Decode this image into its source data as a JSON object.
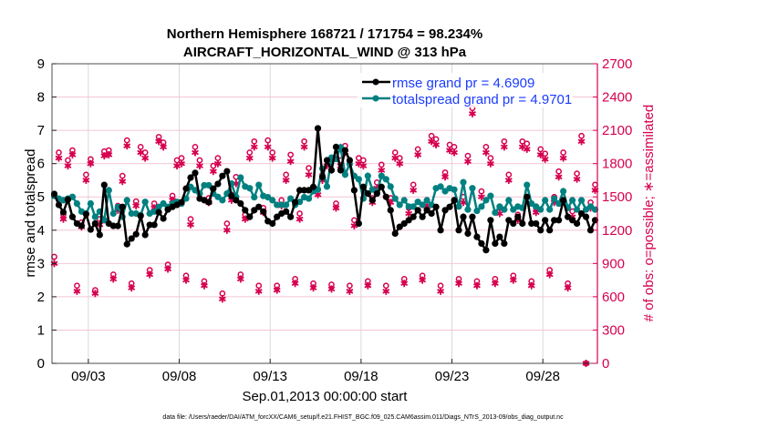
{
  "chart_data": {
    "type": "line",
    "title": [
      "Northern Hemisphere 168721 / 171754 = 98.234%",
      "AIRCRAFT_HORIZONTAL_WIND @ 313 hPa"
    ],
    "xlabel": "Sep.01,2013 00:00:00 start",
    "ylabel": "rmse and totalspread",
    "y2label": "# of obs: o=possible; ∗=assimilated",
    "footnote": "data file: /Users/raeder/DAI/ATM_forcXX/CAM6_setup/f.e21.FHIST_BGC.f09_025.CAM6assim.011/Diags_NTrS_2013-09/obs_diag_output.nc",
    "xlim": [
      "09/01",
      "10/01"
    ],
    "xticks": [
      "09/03",
      "09/08",
      "09/13",
      "09/18",
      "09/23",
      "09/28"
    ],
    "ylim": [
      0,
      9
    ],
    "yticks": [
      "0",
      "1",
      "2",
      "3",
      "4",
      "5",
      "6",
      "7",
      "8",
      "9"
    ],
    "y2lim": [
      0,
      2700
    ],
    "y2ticks": [
      "0",
      "300",
      "600",
      "900",
      "1200",
      "1500",
      "1800",
      "2100",
      "2400",
      "2700"
    ],
    "grid": true,
    "legend_placement": "top-right",
    "colors": {
      "rmse": "#000000",
      "totalspread": "#008080",
      "obs": "#d6004f",
      "legend_text": "#1a3cff",
      "grid_h": "#f4c6d6",
      "grid_v": "#d9d9d9"
    },
    "series": [
      {
        "name": "rmse grand pr = 4.6909",
        "axis": "left",
        "values": [
          5.09,
          4.76,
          4.54,
          4.92,
          4.4,
          4.2,
          4.13,
          4.48,
          4.02,
          4.2,
          3.86,
          5.36,
          4.2,
          4.13,
          4.13,
          4.7,
          3.58,
          3.75,
          3.88,
          4.43,
          3.86,
          4.16,
          4.16,
          4.54,
          4.35,
          4.62,
          4.7,
          4.76,
          4.84,
          5.25,
          5.58,
          5.72,
          4.95,
          4.9,
          4.84,
          5.25,
          5.39,
          5.63,
          5.77,
          5.03,
          4.9,
          4.8,
          4.6,
          4.4,
          4.6,
          4.7,
          4.56,
          4.27,
          4.2,
          4.4,
          4.5,
          4.56,
          4.4,
          4.84,
          5.2,
          5.2,
          5.2,
          5.3,
          7.06,
          5.6,
          6.1,
          5.8,
          6.5,
          5.8,
          6.4,
          6.1,
          5.2,
          4.2,
          5.3,
          5.1,
          4.9,
          5.1,
          5.3,
          5.0,
          4.6,
          3.9,
          4.1,
          4.2,
          4.3,
          4.4,
          4.6,
          4.4,
          4.6,
          4.5,
          4.7,
          4.0,
          4.6,
          4.7,
          4.9,
          4.0,
          4.4,
          3.9,
          4.4,
          3.8,
          3.6,
          3.4,
          4.3,
          3.6,
          3.8,
          3.6,
          4.3,
          4.2,
          4.4,
          4.2,
          5.0,
          4.2,
          4.2,
          4.0,
          4.3,
          4.0,
          4.3,
          4.3,
          4.9,
          4.4,
          4.3,
          4.2,
          4.5,
          4.4,
          4.0,
          4.3
        ]
      },
      {
        "name": "totalspread grand pr = 4.9701",
        "axis": "left",
        "values": [
          5.03,
          4.95,
          4.9,
          4.95,
          5.0,
          4.8,
          4.56,
          4.5,
          4.8,
          4.4,
          4.56,
          4.3,
          5.2,
          4.5,
          4.7,
          4.4,
          4.9,
          4.5,
          4.5,
          4.45,
          4.85,
          4.5,
          4.56,
          4.7,
          4.8,
          4.7,
          4.8,
          4.85,
          4.8,
          4.95,
          5.3,
          5.2,
          5.1,
          5.35,
          5.35,
          5.1,
          5.0,
          4.9,
          5.1,
          5.4,
          5.0,
          5.58,
          5.31,
          5.26,
          4.99,
          5.36,
          5.03,
          4.99,
          4.9,
          4.76,
          4.76,
          4.76,
          4.95,
          4.76,
          4.85,
          4.99,
          4.95,
          5.17,
          5.22,
          5.85,
          5.31,
          6.18,
          6.14,
          6.49,
          5.67,
          5.99,
          5.63,
          5.53,
          4.95,
          5.63,
          5.22,
          5.13,
          5.63,
          5.53,
          5.31,
          4.95,
          4.76,
          4.9,
          4.71,
          4.71,
          4.85,
          4.76,
          4.9,
          4.76,
          5.26,
          5.31,
          5.17,
          5.26,
          5.22,
          4.71,
          5.44,
          4.62,
          5.26,
          4.58,
          4.71,
          4.9,
          5.03,
          4.53,
          4.71,
          4.62,
          4.9,
          4.62,
          4.71,
          4.67,
          5.36,
          4.8,
          4.71,
          4.62,
          4.9,
          4.62,
          4.95,
          4.8,
          5.17,
          4.67,
          4.9,
          4.62,
          4.9,
          4.62,
          4.71,
          4.62
        ]
      },
      {
        "name": "possible",
        "axis": "right",
        "marker": "o",
        "values": [
          960,
          1900,
          1340,
          1830,
          1920,
          700,
          1270,
          1700,
          1840,
          660,
          1300,
          1910,
          1920,
          800,
          1420,
          1690,
          2010,
          720,
          1460,
          1950,
          1900,
          840,
          1440,
          2040,
          1990,
          890,
          1510,
          1830,
          1850,
          790,
          1300,
          1950,
          1830,
          740,
          1490,
          1780,
          1850,
          630,
          1260,
          1520,
          1680,
          800,
          1340,
          1900,
          2000,
          700,
          1400,
          2010,
          1900,
          700,
          1470,
          1700,
          1880,
          760,
          1350,
          2000,
          1760,
          720,
          1570,
          1700,
          1830,
          710,
          1440,
          1830,
          1960,
          700,
          1290,
          1850,
          1830,
          740,
          1490,
          1630,
          1790,
          700,
          1490,
          1900,
          1850,
          760,
          1400,
          1610,
          1930,
          790,
          1450,
          2050,
          2020,
          700,
          1720,
          1970,
          1950,
          760,
          1500,
          1870,
          2300,
          740,
          1550,
          1950,
          1850,
          760,
          1400,
          2000,
          1700,
          790,
          1340,
          2000,
          1980,
          740,
          1400,
          1930,
          1890,
          840,
          1500,
          1730,
          1900,
          720,
          1370,
          1710,
          2050,
          0,
          1450,
          1610
        ]
      },
      {
        "name": "assimilated",
        "axis": "right",
        "marker": "*",
        "values": [
          900,
          1850,
          1300,
          1780,
          1880,
          650,
          1230,
          1650,
          1800,
          630,
          1250,
          1870,
          1880,
          760,
          1380,
          1640,
          1960,
          680,
          1420,
          1900,
          1850,
          800,
          1400,
          2000,
          1950,
          850,
          1470,
          1780,
          1800,
          750,
          1250,
          1900,
          1780,
          700,
          1450,
          1730,
          1800,
          580,
          1200,
          1470,
          1620,
          760,
          1300,
          1850,
          1950,
          650,
          1360,
          1950,
          1850,
          660,
          1420,
          1650,
          1820,
          720,
          1300,
          1950,
          1700,
          680,
          1520,
          1650,
          1780,
          670,
          1400,
          1780,
          1900,
          650,
          1240,
          1800,
          1780,
          700,
          1450,
          1580,
          1740,
          650,
          1450,
          1850,
          1800,
          720,
          1350,
          1560,
          1880,
          750,
          1410,
          2000,
          1970,
          650,
          1680,
          1920,
          1900,
          720,
          1450,
          1820,
          2250,
          700,
          1500,
          1900,
          1800,
          720,
          1350,
          1950,
          1650,
          750,
          1290,
          1950,
          1930,
          700,
          1360,
          1880,
          1840,
          800,
          1450,
          1680,
          1850,
          680,
          1320,
          1660,
          2000,
          0,
          1400,
          1560
        ]
      }
    ]
  }
}
